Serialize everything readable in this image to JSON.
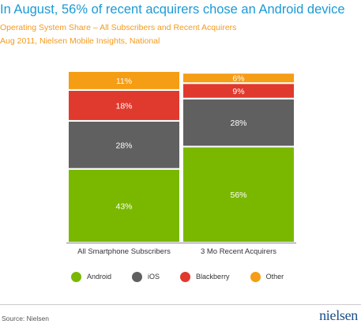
{
  "title": "In August, 56% of recent acquirers chose an Android device",
  "subtitle": "Operating System Share – All Subscribers and Recent Acquirers",
  "source_line": "Aug 2011, Nielsen Mobile Insights, National",
  "footer": {
    "source": "Source: Nielsen",
    "logo": "nielsen"
  },
  "colors": {
    "Android": "#7ab800",
    "iOS": "#606060",
    "Blackberry": "#e03a2e",
    "Other": "#f59d14",
    "title": "#1a9ad6",
    "subtitle": "#f39a1e"
  },
  "chart_data": {
    "type": "bar",
    "stacked": true,
    "categories": [
      "All Smartphone Subscribers",
      "3 Mo Recent Acquirers"
    ],
    "series": [
      {
        "name": "Android",
        "values": [
          43,
          56
        ],
        "labels": [
          "43%",
          "56%"
        ]
      },
      {
        "name": "iOS",
        "values": [
          28,
          28
        ],
        "labels": [
          "28%",
          "28%"
        ]
      },
      {
        "name": "Blackberry",
        "values": [
          18,
          9
        ],
        "labels": [
          "18%",
          "9%"
        ]
      },
      {
        "name": "Other",
        "values": [
          11,
          6
        ],
        "labels": [
          "11%",
          "6%"
        ]
      }
    ],
    "ylim": [
      0,
      100
    ],
    "grid": false,
    "legend": "bottom"
  },
  "legend": {
    "items": [
      {
        "label": "Android",
        "color": "#7ab800"
      },
      {
        "label": "iOS",
        "color": "#606060"
      },
      {
        "label": "Blackberry",
        "color": "#e03a2e"
      },
      {
        "label": "Other",
        "color": "#f59d14"
      }
    ]
  }
}
